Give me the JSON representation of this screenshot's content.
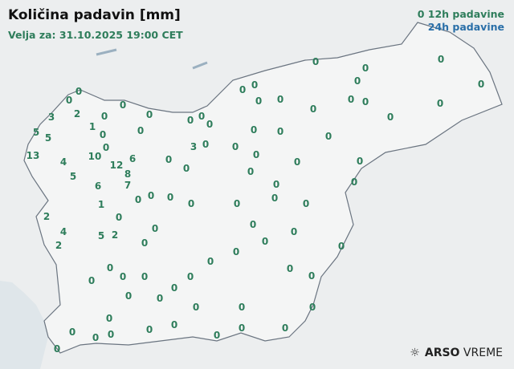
{
  "title": "Količina padavin [mm]",
  "valid": "Velja za: 31.10.2025 19:00 CET",
  "legend": {
    "first_value": "0",
    "h12": "12h padavine",
    "h24": "24h padavine",
    "colors": {
      "h12": "#2e7d5b",
      "h24": "#2a6fa8"
    }
  },
  "brand": {
    "name_bold": "ARSO",
    "name": "VREME",
    "icon": "weather-sun-cloud-icon"
  },
  "stations": [
    "0",
    "0",
    "2",
    "3",
    "0",
    "1",
    "5",
    "5",
    "0",
    "0",
    "13",
    "4",
    "10",
    "12",
    "6",
    "8",
    "7",
    "5",
    "6",
    "0",
    "0",
    "0",
    "1",
    "0",
    "2",
    "4",
    "2",
    "5",
    "2",
    "0",
    "0",
    "0",
    "0",
    "0",
    "0",
    "0",
    "0",
    "3",
    "0",
    "0",
    "0",
    "0",
    "0",
    "0",
    "0",
    "0",
    "0",
    "0",
    "0",
    "0",
    "0",
    "0",
    "0",
    "0",
    "0",
    "0",
    "0",
    "0",
    "0",
    "0",
    "0",
    "0",
    "0",
    "0",
    "0",
    "0",
    "0",
    "0",
    "0",
    "0",
    "0",
    "0",
    "0",
    "0",
    "0",
    "0",
    "0",
    "0",
    "0",
    "0",
    "0",
    "0",
    "0",
    "0",
    "0",
    "0",
    "0",
    "0",
    "0",
    "0",
    "0",
    "0",
    "0",
    "0",
    "0",
    "0",
    "0",
    "0",
    "0",
    "0",
    "0",
    "0",
    "0"
  ]
}
